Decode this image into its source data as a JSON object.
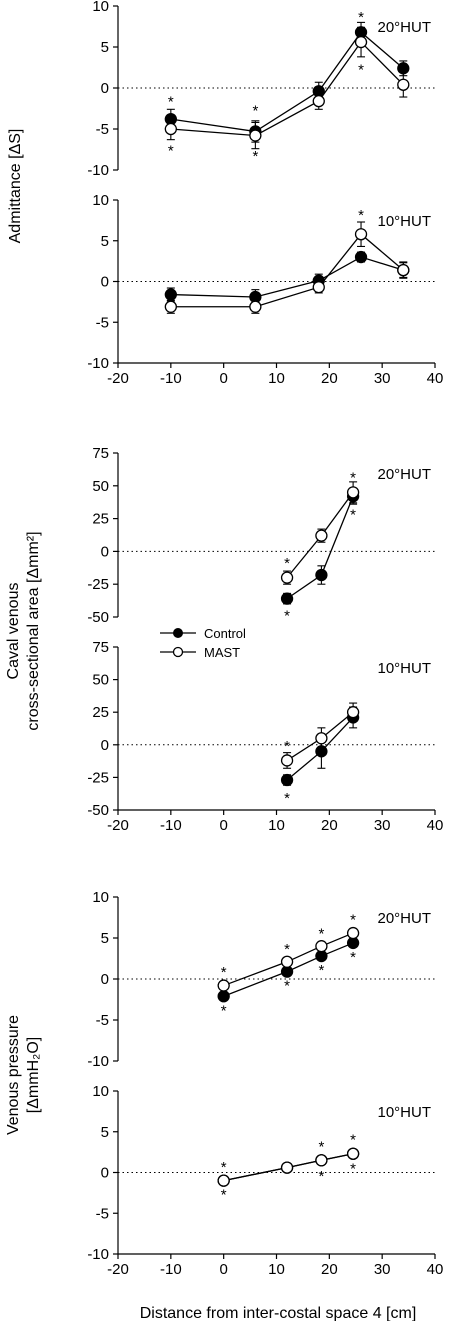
{
  "figure": {
    "xlabel": "Distance from inter-costal space 4 [cm]",
    "legend": {
      "control": "Control",
      "mast": "MAST"
    },
    "ylabels": {
      "admittance": "Admittance [ΔS]",
      "caval": [
        "Caval venous",
        "cross-sectional area [Δmm²]"
      ],
      "pressure": [
        "Venous pressure",
        "[ΔmmH₂O]"
      ]
    }
  },
  "chart_data": [
    {
      "type": "line",
      "group": "admittance",
      "condition": "20°HUT",
      "xlim": [
        -20,
        40
      ],
      "xticks": [
        -20,
        -10,
        0,
        10,
        20,
        30,
        40
      ],
      "show_xticks": false,
      "ylim": [
        -10,
        10
      ],
      "yticks": [
        -10,
        -5,
        0,
        5,
        10
      ],
      "reference_line": 0,
      "x": [
        -10,
        6,
        18,
        26,
        34
      ],
      "series": [
        {
          "name": "Control",
          "marker": "filled",
          "values": [
            -3.8,
            -5.3,
            -0.4,
            6.8,
            2.4
          ],
          "errors": [
            1.2,
            1.3,
            1.1,
            1.2,
            0.9
          ]
        },
        {
          "name": "MAST",
          "marker": "open",
          "values": [
            -5.0,
            -5.8,
            -1.6,
            5.6,
            0.4
          ],
          "errors": [
            1.3,
            1.6,
            1.0,
            1.8,
            1.5
          ]
        }
      ],
      "annotations": [
        {
          "text": "*",
          "x": -10,
          "y": -1.5
        },
        {
          "text": "*",
          "x": -10,
          "y": -7.5
        },
        {
          "text": "*",
          "x": 6,
          "y": -2.6
        },
        {
          "text": "*",
          "x": 6,
          "y": -8.2
        },
        {
          "text": "*",
          "x": 26,
          "y": 8.8
        },
        {
          "text": "*",
          "x": 26,
          "y": 2.4
        }
      ]
    },
    {
      "type": "line",
      "group": "admittance",
      "condition": "10°HUT",
      "xlim": [
        -20,
        40
      ],
      "xticks": [
        -20,
        -10,
        0,
        10,
        20,
        30,
        40
      ],
      "show_xticks": true,
      "ylim": [
        -10,
        10
      ],
      "yticks": [
        -10,
        -5,
        0,
        5,
        10
      ],
      "reference_line": 0,
      "x": [
        -10,
        6,
        18,
        26,
        34
      ],
      "series": [
        {
          "name": "Control",
          "marker": "filled",
          "values": [
            -1.6,
            -1.9,
            0.1,
            3.0,
            1.4
          ],
          "errors": [
            0.8,
            0.9,
            0.8,
            0.6,
            0.9
          ]
        },
        {
          "name": "MAST",
          "marker": "open",
          "values": [
            -3.1,
            -3.1,
            -0.7,
            5.8,
            1.4
          ],
          "errors": [
            0.8,
            0.8,
            0.7,
            1.5,
            1.0
          ]
        }
      ],
      "annotations": [
        {
          "text": "*",
          "x": 26,
          "y": 8.3
        }
      ]
    },
    {
      "type": "line",
      "group": "caval",
      "condition": "20°HUT",
      "xlim": [
        -20,
        40
      ],
      "xticks": [
        -20,
        -10,
        0,
        10,
        20,
        30,
        40
      ],
      "show_xticks": false,
      "ylim": [
        -50,
        75
      ],
      "yticks": [
        -50,
        -25,
        0,
        25,
        50,
        75
      ],
      "reference_line": 0,
      "x": [
        12,
        18.5,
        24.5
      ],
      "series": [
        {
          "name": "Control",
          "marker": "filled",
          "values": [
            -36,
            -18,
            42
          ],
          "errors": [
            4,
            7,
            6
          ]
        },
        {
          "name": "MAST",
          "marker": "open",
          "values": [
            -20,
            12,
            45
          ],
          "errors": [
            5,
            5,
            8
          ]
        }
      ],
      "annotations": [
        {
          "text": "*",
          "x": 12,
          "y": -8
        },
        {
          "text": "*",
          "x": 12,
          "y": -48
        },
        {
          "text": "*",
          "x": 24.5,
          "y": 57
        },
        {
          "text": "*",
          "x": 24.5,
          "y": 29
        }
      ]
    },
    {
      "type": "line",
      "group": "caval",
      "condition": "10°HUT",
      "xlim": [
        -20,
        40
      ],
      "xticks": [
        -20,
        -10,
        0,
        10,
        20,
        30,
        40
      ],
      "show_xticks": true,
      "ylim": [
        -50,
        75
      ],
      "yticks": [
        -50,
        -25,
        0,
        25,
        50,
        75
      ],
      "reference_line": 0,
      "x": [
        12,
        18.5,
        24.5
      ],
      "series": [
        {
          "name": "Control",
          "marker": "filled",
          "values": [
            -27,
            -5,
            21
          ],
          "errors": [
            4,
            13,
            8
          ]
        },
        {
          "name": "MAST",
          "marker": "open",
          "values": [
            -12,
            5,
            25
          ],
          "errors": [
            6,
            8,
            7
          ]
        }
      ],
      "annotations": [
        {
          "text": "*",
          "x": 12,
          "y": 0
        },
        {
          "text": "*",
          "x": 12,
          "y": -40
        }
      ]
    },
    {
      "type": "line",
      "group": "pressure",
      "condition": "20°HUT",
      "xlim": [
        -20,
        40
      ],
      "xticks": [
        -20,
        -10,
        0,
        10,
        20,
        30,
        40
      ],
      "show_xticks": false,
      "ylim": [
        -10,
        10
      ],
      "yticks": [
        -10,
        -5,
        0,
        5,
        10
      ],
      "reference_line": 0,
      "x": [
        0,
        12,
        18.5,
        24.5
      ],
      "series": [
        {
          "name": "Control",
          "marker": "filled",
          "values": [
            -2.1,
            0.9,
            2.8,
            4.4
          ],
          "errors": [
            0.4,
            0.4,
            0.4,
            0.5
          ]
        },
        {
          "name": "MAST",
          "marker": "open",
          "values": [
            -0.8,
            2.1,
            4.0,
            5.6
          ],
          "errors": [
            0.4,
            0.4,
            0.4,
            0.5
          ]
        }
      ],
      "annotations": [
        {
          "text": "*",
          "x": 0,
          "y": 1.0
        },
        {
          "text": "*",
          "x": 0,
          "y": -3.7
        },
        {
          "text": "*",
          "x": 12,
          "y": 3.8
        },
        {
          "text": "*",
          "x": 12,
          "y": -0.7
        },
        {
          "text": "*",
          "x": 18.5,
          "y": 5.7
        },
        {
          "text": "*",
          "x": 18.5,
          "y": 1.2
        },
        {
          "text": "*",
          "x": 24.5,
          "y": 7.4
        },
        {
          "text": "*",
          "x": 24.5,
          "y": 2.8
        }
      ]
    },
    {
      "type": "line",
      "group": "pressure",
      "condition": "10°HUT",
      "xlim": [
        -20,
        40
      ],
      "xticks": [
        -20,
        -10,
        0,
        10,
        20,
        30,
        40
      ],
      "show_xticks": true,
      "ylim": [
        -10,
        10
      ],
      "yticks": [
        -10,
        -5,
        0,
        5,
        10
      ],
      "reference_line": 0,
      "x": [
        0,
        12,
        18.5,
        24.5
      ],
      "series": [
        {
          "name": "Control",
          "marker": "filled",
          "values": [
            -1.0,
            0.6,
            1.5,
            2.3
          ],
          "errors": [
            0.3,
            0.3,
            0.3,
            0.4
          ]
        },
        {
          "name": "MAST",
          "marker": "open",
          "values": [
            -1.0,
            0.6,
            1.5,
            2.3
          ],
          "errors": [
            0.3,
            0.3,
            0.3,
            0.4
          ]
        }
      ],
      "annotations": [
        {
          "text": "*",
          "x": 0,
          "y": 0.8
        },
        {
          "text": "*",
          "x": 0,
          "y": -2.6
        },
        {
          "text": "*",
          "x": 18.5,
          "y": 3.3
        },
        {
          "text": "*",
          "x": 18.5,
          "y": -0.3
        },
        {
          "text": "*",
          "x": 24.5,
          "y": 4.2
        },
        {
          "text": "*",
          "x": 24.5,
          "y": 0.6
        }
      ]
    }
  ]
}
